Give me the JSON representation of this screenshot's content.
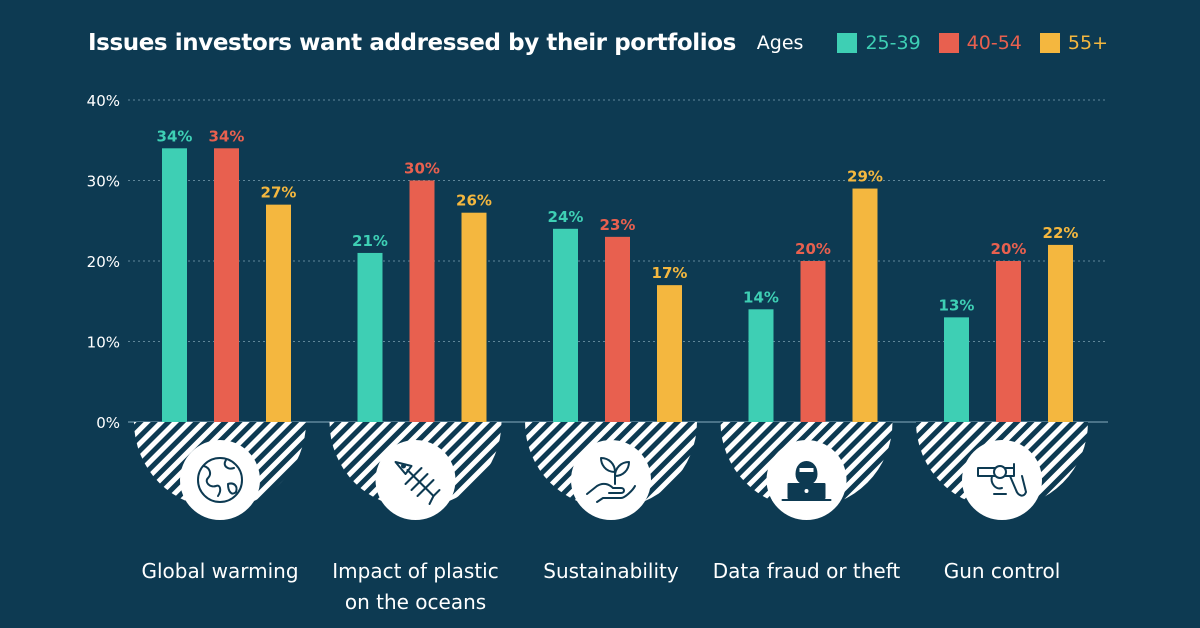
{
  "chart_data": {
    "type": "bar",
    "title": "Issues investors want addressed by their portfolios",
    "legend_title": "Ages",
    "legend_placement": "top-right",
    "categories": [
      "Global warming",
      "Impact of plastic on the oceans",
      "Sustainability",
      "Data fraud or theft",
      "Gun control"
    ],
    "category_lines": [
      [
        "Global warming"
      ],
      [
        "Impact of plastic",
        "on the oceans"
      ],
      [
        "Sustainability"
      ],
      [
        "Data fraud or theft"
      ],
      [
        "Gun control"
      ]
    ],
    "series": [
      {
        "name": "25-39",
        "color": "#3ecfb4",
        "values": [
          34,
          21,
          24,
          14,
          13
        ]
      },
      {
        "name": "40-54",
        "color": "#e8604f",
        "values": [
          34,
          30,
          23,
          20,
          20
        ]
      },
      {
        "name": "55+",
        "color": "#f4b73f",
        "values": [
          27,
          26,
          17,
          29,
          22
        ]
      }
    ],
    "ylim": [
      0,
      40
    ],
    "yticks": [
      0,
      10,
      20,
      30,
      40
    ],
    "ytick_labels": [
      "0%",
      "10%",
      "20%",
      "30%",
      "40%"
    ],
    "value_suffix": "%",
    "grid": true,
    "icons": [
      "globe-icon",
      "fish-skeleton-icon",
      "plant-in-hand-icon",
      "hacker-laptop-icon",
      "revolver-icon"
    ]
  },
  "colors": {
    "background": "#0d3a52",
    "grid": "#5f8699",
    "icon_circle": "#ffffff",
    "icon_stroke": "#0d3a52",
    "hatch": "#ffffff"
  }
}
